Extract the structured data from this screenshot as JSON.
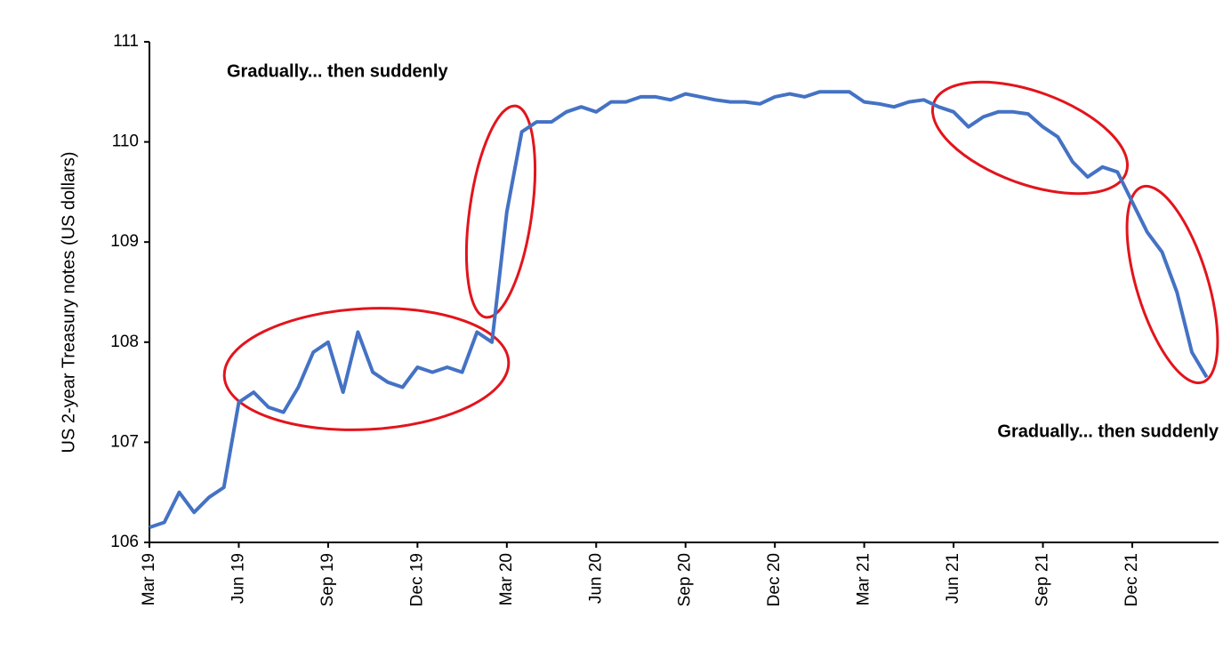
{
  "chart_data": {
    "type": "line",
    "y_label": "US 2-year Treasury notes (US dollars)",
    "annotations": [
      "Gradually... then suddenly",
      "Gradually... then suddenly"
    ],
    "categories": [
      "Mar 19",
      null,
      null,
      null,
      null,
      null,
      "Jun 19",
      null,
      null,
      null,
      null,
      null,
      "Sep 19",
      null,
      null,
      null,
      null,
      null,
      "Dec 19",
      null,
      null,
      null,
      null,
      null,
      "Mar 20",
      null,
      null,
      null,
      null,
      null,
      "Jun 20",
      null,
      null,
      null,
      null,
      null,
      "Sep 20",
      null,
      null,
      null,
      null,
      null,
      "Dec 20",
      null,
      null,
      null,
      null,
      null,
      "Mar 21",
      null,
      null,
      null,
      null,
      null,
      "Jun 21",
      null,
      null,
      null,
      null,
      null,
      "Sep 21",
      null,
      null,
      null,
      null,
      null,
      "Dec 21",
      null,
      null,
      null,
      null,
      null
    ],
    "values": [
      106.15,
      106.2,
      106.5,
      106.3,
      106.45,
      106.55,
      107.4,
      107.5,
      107.35,
      107.3,
      107.55,
      107.9,
      108.0,
      107.5,
      108.1,
      107.7,
      107.6,
      107.55,
      107.75,
      107.7,
      107.75,
      107.7,
      108.1,
      108.0,
      109.3,
      110.1,
      110.2,
      110.2,
      110.3,
      110.35,
      110.3,
      110.4,
      110.4,
      110.45,
      110.45,
      110.42,
      110.48,
      110.45,
      110.42,
      110.4,
      110.4,
      110.38,
      110.45,
      110.48,
      110.45,
      110.5,
      110.5,
      110.5,
      110.4,
      110.38,
      110.35,
      110.4,
      110.42,
      110.35,
      110.3,
      110.15,
      110.25,
      110.3,
      110.3,
      110.28,
      110.15,
      110.05,
      109.8,
      109.65,
      109.75,
      109.7,
      109.4,
      109.1,
      108.9,
      108.5,
      107.9,
      107.65
    ],
    "color": "#4472c4",
    "ylim": [
      106,
      111
    ],
    "yticks": [
      106,
      107,
      108,
      109,
      110,
      111
    ],
    "grid": false
  }
}
